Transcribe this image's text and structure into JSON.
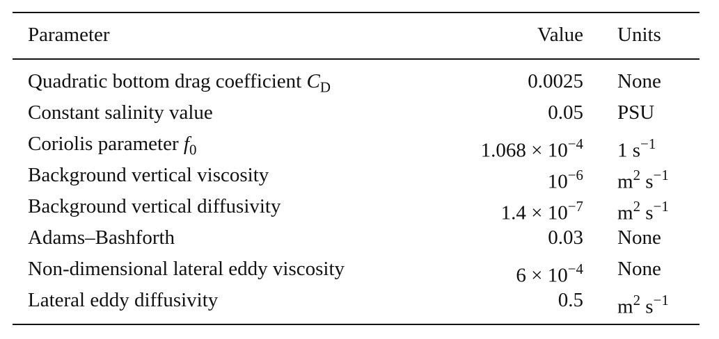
{
  "table": {
    "header": [
      "Parameter",
      "Value",
      "Units"
    ],
    "rows": [
      [
        [
          {
            "t": "Quadratic bottom drag coefficient "
          },
          {
            "t": "C",
            "s": "i"
          },
          {
            "t": "D",
            "s": "sub"
          }
        ],
        [
          {
            "t": "0.0025"
          }
        ],
        [
          {
            "t": "None"
          }
        ]
      ],
      [
        [
          {
            "t": "Constant salinity value"
          }
        ],
        [
          {
            "t": "0.05"
          }
        ],
        [
          {
            "t": "PSU"
          }
        ]
      ],
      [
        [
          {
            "t": "Coriolis parameter "
          },
          {
            "t": "f",
            "s": "i"
          },
          {
            "t": "0",
            "s": "sub"
          }
        ],
        [
          {
            "t": "1.068 × 10"
          },
          {
            "t": "−4",
            "s": "sup"
          }
        ],
        [
          {
            "t": "1 s"
          },
          {
            "t": "−1",
            "s": "sup"
          }
        ]
      ],
      [
        [
          {
            "t": "Background vertical viscosity"
          }
        ],
        [
          {
            "t": "10"
          },
          {
            "t": "−6",
            "s": "sup"
          }
        ],
        [
          {
            "t": "m"
          },
          {
            "t": "2",
            "s": "sup"
          },
          {
            "t": " s"
          },
          {
            "t": "−1",
            "s": "sup"
          }
        ]
      ],
      [
        [
          {
            "t": "Background vertical diffusivity"
          }
        ],
        [
          {
            "t": "1.4 × 10"
          },
          {
            "t": "−7",
            "s": "sup"
          }
        ],
        [
          {
            "t": "m"
          },
          {
            "t": "2",
            "s": "sup"
          },
          {
            "t": " s"
          },
          {
            "t": "−1",
            "s": "sup"
          }
        ]
      ],
      [
        [
          {
            "t": "Adams–Bashforth"
          }
        ],
        [
          {
            "t": "0.03"
          }
        ],
        [
          {
            "t": "None"
          }
        ]
      ],
      [
        [
          {
            "t": "Non-dimensional lateral eddy viscosity"
          }
        ],
        [
          {
            "t": "6 × 10"
          },
          {
            "t": "−4",
            "s": "sup"
          }
        ],
        [
          {
            "t": "None"
          }
        ]
      ],
      [
        [
          {
            "t": "Lateral eddy diffusivity"
          }
        ],
        [
          {
            "t": "0.5"
          }
        ],
        [
          {
            "t": "m"
          },
          {
            "t": "2",
            "s": "sup"
          },
          {
            "t": " s"
          },
          {
            "t": "−1",
            "s": "sup"
          }
        ]
      ]
    ]
  }
}
